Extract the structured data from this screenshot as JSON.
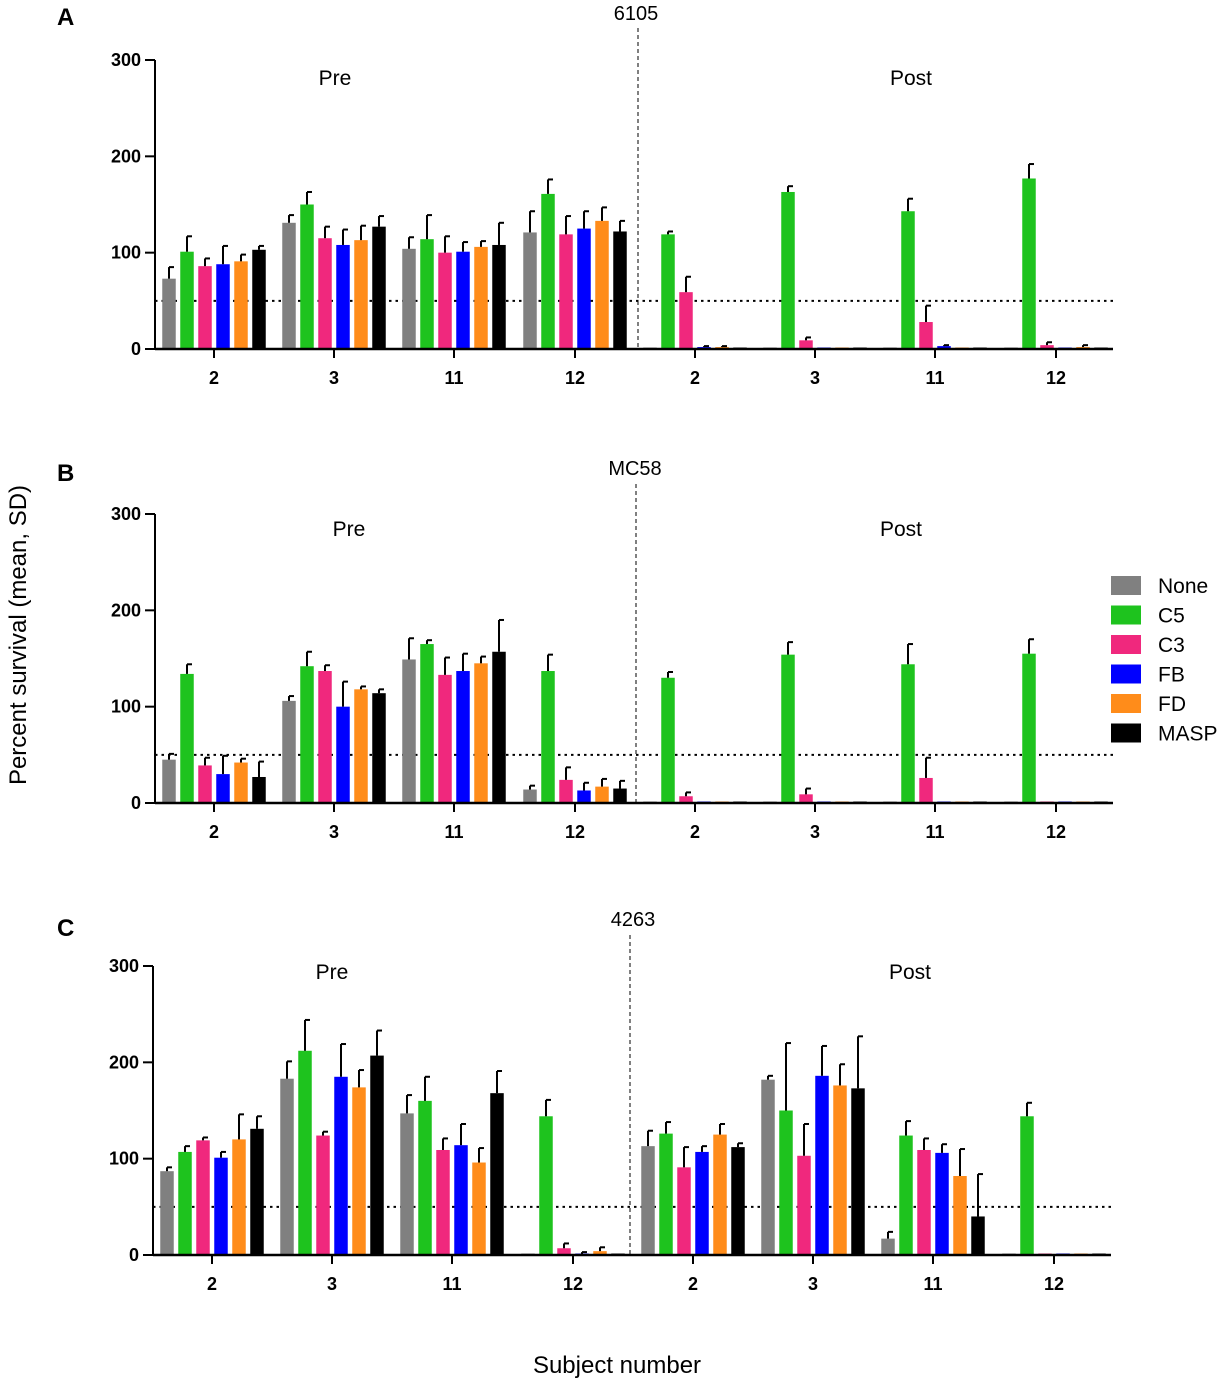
{
  "y_axis_title": "Percent survival (mean, SD)",
  "x_axis_title": "Subject number",
  "legend": [
    {
      "name": "None",
      "color": "#808080"
    },
    {
      "name": "C5",
      "color": "#1ec31e"
    },
    {
      "name": "C3",
      "color": "#f0287d"
    },
    {
      "name": "FB",
      "color": "#0000ff"
    },
    {
      "name": "FD",
      "color": "#ff8c1a"
    },
    {
      "name": "MASP",
      "color": "#000000"
    }
  ],
  "chart_data": [
    {
      "type": "bar",
      "panel": "A",
      "title": "6105",
      "groups": [
        "Pre",
        "Post"
      ],
      "categories": [
        "2",
        "3",
        "11",
        "12",
        "2",
        "3",
        "11",
        "12"
      ],
      "ylim": [
        0,
        300
      ],
      "yticks": [
        "0",
        "100",
        "200",
        "300"
      ],
      "threshold": 50,
      "series": [
        {
          "name": "None",
          "values": [
            73,
            131,
            104,
            121,
            1,
            1,
            1,
            1
          ],
          "sd": [
            12,
            8,
            12,
            22,
            0,
            0,
            0,
            0
          ]
        },
        {
          "name": "C5",
          "values": [
            101,
            150,
            114,
            161,
            119,
            163,
            143,
            177
          ],
          "sd": [
            16,
            13,
            25,
            15,
            3,
            6,
            13,
            15
          ]
        },
        {
          "name": "C3",
          "values": [
            86,
            115,
            100,
            119,
            59,
            9,
            28,
            4
          ],
          "sd": [
            8,
            12,
            17,
            19,
            16,
            3,
            17,
            3
          ]
        },
        {
          "name": "FB",
          "values": [
            88,
            108,
            101,
            125,
            2,
            1,
            3,
            1
          ],
          "sd": [
            19,
            16,
            10,
            18,
            1,
            0,
            1,
            0
          ]
        },
        {
          "name": "FD",
          "values": [
            91,
            113,
            106,
            133,
            2,
            1,
            1,
            2
          ],
          "sd": [
            7,
            15,
            6,
            14,
            1,
            0,
            0,
            2
          ]
        },
        {
          "name": "MASP",
          "values": [
            103,
            127,
            108,
            122,
            1,
            1,
            1,
            1
          ],
          "sd": [
            4,
            11,
            23,
            11,
            0,
            0,
            0,
            0
          ]
        }
      ]
    },
    {
      "type": "bar",
      "panel": "B",
      "title": "MC58",
      "groups": [
        "Pre",
        "Post"
      ],
      "categories": [
        "2",
        "3",
        "11",
        "12",
        "2",
        "3",
        "11",
        "12"
      ],
      "ylim": [
        0,
        300
      ],
      "yticks": [
        "0",
        "100",
        "200",
        "300"
      ],
      "threshold": 50,
      "series": [
        {
          "name": "None",
          "values": [
            45,
            106,
            149,
            14,
            1,
            1,
            1,
            1
          ],
          "sd": [
            6,
            5,
            22,
            4,
            0,
            0,
            0,
            0
          ]
        },
        {
          "name": "C5",
          "values": [
            134,
            142,
            165,
            137,
            130,
            154,
            144,
            155
          ],
          "sd": [
            10,
            15,
            4,
            17,
            6,
            13,
            21,
            15
          ]
        },
        {
          "name": "C3",
          "values": [
            39,
            137,
            133,
            24,
            7,
            9,
            26,
            1
          ],
          "sd": [
            8,
            6,
            18,
            13,
            4,
            6,
            21,
            0
          ]
        },
        {
          "name": "FB",
          "values": [
            30,
            100,
            137,
            13,
            1,
            1,
            1,
            1
          ],
          "sd": [
            19,
            26,
            18,
            8,
            0,
            0,
            0,
            0
          ]
        },
        {
          "name": "FD",
          "values": [
            42,
            118,
            145,
            17,
            1,
            1,
            1,
            1
          ],
          "sd": [
            4,
            3,
            7,
            8,
            0,
            0,
            0,
            0
          ]
        },
        {
          "name": "MASP",
          "values": [
            27,
            114,
            157,
            15,
            1,
            1,
            1,
            1
          ],
          "sd": [
            16,
            4,
            33,
            8,
            0,
            0,
            0,
            0
          ]
        }
      ]
    },
    {
      "type": "bar",
      "panel": "C",
      "title": "4263",
      "groups": [
        "Pre",
        "Post"
      ],
      "categories": [
        "2",
        "3",
        "11",
        "12",
        "2",
        "3",
        "11",
        "12"
      ],
      "ylim": [
        0,
        300
      ],
      "yticks": [
        "0",
        "100",
        "200",
        "300"
      ],
      "threshold": 50,
      "series": [
        {
          "name": "None",
          "values": [
            87,
            183,
            147,
            1,
            113,
            182,
            17,
            1
          ],
          "sd": [
            4,
            18,
            19,
            0,
            16,
            4,
            7,
            0
          ]
        },
        {
          "name": "C5",
          "values": [
            107,
            212,
            160,
            144,
            126,
            150,
            124,
            144
          ],
          "sd": [
            6,
            32,
            25,
            17,
            12,
            70,
            15,
            14
          ]
        },
        {
          "name": "C3",
          "values": [
            119,
            124,
            109,
            7,
            91,
            103,
            109,
            1
          ],
          "sd": [
            3,
            4,
            12,
            5,
            21,
            33,
            12,
            0
          ]
        },
        {
          "name": "FB",
          "values": [
            101,
            185,
            114,
            1,
            107,
            186,
            106,
            1
          ],
          "sd": [
            6,
            34,
            22,
            2,
            6,
            31,
            9,
            0
          ]
        },
        {
          "name": "FD",
          "values": [
            120,
            174,
            96,
            4,
            125,
            176,
            82,
            1
          ],
          "sd": [
            26,
            18,
            15,
            4,
            11,
            22,
            28,
            0
          ]
        },
        {
          "name": "MASP",
          "values": [
            131,
            207,
            168,
            1,
            112,
            173,
            40,
            1
          ],
          "sd": [
            13,
            26,
            23,
            0,
            4,
            54,
            44,
            0
          ]
        }
      ]
    }
  ]
}
